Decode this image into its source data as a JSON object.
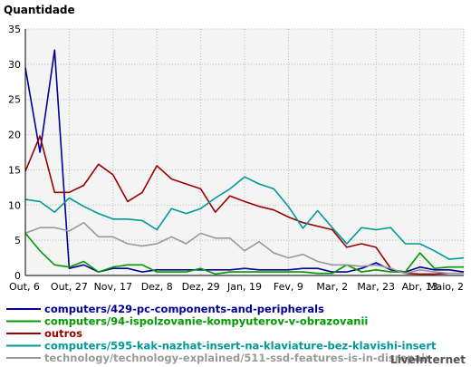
{
  "chart_data": {
    "type": "line",
    "title": "",
    "ylabel": "Quantidade",
    "xlabel": "",
    "ylim": [
      0,
      35
    ],
    "yticks": [
      0,
      5,
      10,
      15,
      20,
      25,
      30,
      35
    ],
    "x_tick_labels": [
      "Out, 6",
      "Out, 27",
      "Nov, 17",
      "Dez, 8",
      "Dez, 29",
      "Jan, 19",
      "Fev, 9",
      "Mar, 2",
      "Mar, 23",
      "Abr, 13",
      "Maio, 2"
    ],
    "x_tick_index": [
      0,
      3,
      6,
      9,
      12,
      15,
      18,
      21,
      24,
      27,
      30
    ],
    "grid": true,
    "legend_position": "bottom",
    "series": [
      {
        "name": "computers/429-pc-components-and-peripherals",
        "color": "#000099",
        "values": [
          29.5,
          17.5,
          32,
          1,
          1.5,
          0.5,
          1,
          1,
          0.5,
          0.8,
          0.8,
          0.8,
          0.8,
          0.8,
          0.8,
          1,
          0.8,
          0.8,
          0.8,
          1,
          1,
          0.5,
          0.5,
          1,
          1.8,
          0.8,
          0.5,
          1.2,
          0.8,
          0.8,
          0.5
        ]
      },
      {
        "name": "computers/94-ispolzovanie-kompyuterov-v-obrazovanii",
        "color": "#009900",
        "values": [
          6,
          3.5,
          1.5,
          1.2,
          2,
          0.5,
          1.2,
          1.5,
          1.5,
          0.5,
          0.5,
          0.5,
          1,
          0.2,
          0.5,
          0.5,
          0.5,
          0.5,
          0.5,
          0.5,
          0.3,
          0.3,
          1.5,
          0.5,
          0.8,
          0.5,
          0.5,
          3.2,
          1,
          1.2,
          1.2
        ]
      },
      {
        "name": "outros",
        "color": "#990000",
        "values": [
          14.8,
          19.8,
          11.8,
          11.8,
          12.8,
          15.8,
          14.3,
          10.5,
          11.8,
          15.6,
          13.7,
          13,
          12.3,
          9,
          11.3,
          10.5,
          9.8,
          9.3,
          8.3,
          7.5,
          7,
          6.5,
          4,
          4.5,
          4,
          1,
          0.3,
          0.2,
          0.2,
          0.3,
          0.3
        ]
      },
      {
        "name": "computers/595-kak-nazhat-insert-na-klaviature-bez-klavishi-insert",
        "color": "#009999",
        "values": [
          10.8,
          10.5,
          9,
          11,
          9.8,
          8.8,
          8,
          8,
          7.8,
          6.5,
          9.5,
          8.8,
          9.5,
          11,
          12.3,
          14,
          13,
          12.3,
          9.8,
          6.7,
          9.2,
          6.8,
          4.5,
          6.8,
          6.5,
          6.8,
          4.5,
          4.5,
          3.5,
          2.3,
          2.5
        ]
      },
      {
        "name": "technology/technology-explained/511-ssd-features-is-in-disrepair",
        "color": "#999999",
        "values": [
          6,
          6.8,
          6.8,
          6.3,
          7.5,
          5.5,
          5.5,
          4.5,
          4.2,
          4.5,
          5.5,
          4.5,
          6,
          5.3,
          5.3,
          3.5,
          4.8,
          3.2,
          2.5,
          3,
          2,
          1.5,
          1.5,
          1.3,
          1.5,
          1,
          0.3,
          0.8,
          0.5,
          0.3,
          0.3
        ]
      }
    ]
  },
  "watermark": "LiveInternet"
}
